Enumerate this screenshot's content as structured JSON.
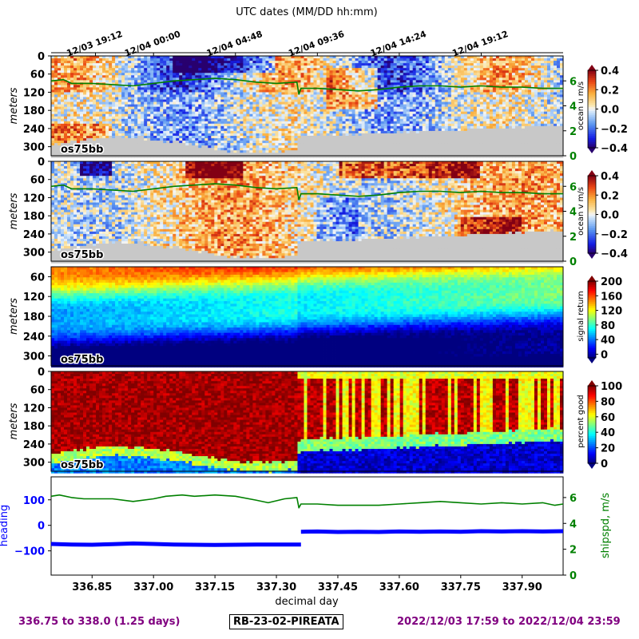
{
  "figure": {
    "top_axis_label": "UTC dates (MM/DD hh:mm)",
    "top_ticks": [
      {
        "x": 336.8583,
        "label": "12/03 19:12"
      },
      {
        "x": 337.0,
        "label": "12/04 00:00"
      },
      {
        "x": 337.2,
        "label": "12/04 04:48"
      },
      {
        "x": 337.4,
        "label": "12/04 09:36"
      },
      {
        "x": 337.6,
        "label": "12/04 14:24"
      },
      {
        "x": 337.8,
        "label": "12/04 19:12"
      }
    ],
    "bottom_xlabel": "decimal day",
    "xlim": [
      336.75,
      338.0
    ],
    "footer_left": "336.75 to 338.0 (1.25 days)",
    "footer_center": "RB-23-02-PIREATA",
    "footer_right": "2022/12/03 17:59 to 2022/12/04 23:59",
    "colors": {
      "shipspd": "#008000",
      "heading": "#0000ff",
      "nodata": "#c8c8c8",
      "footer": "#800080"
    }
  },
  "chart_data": [
    {
      "type": "heatmap",
      "id": "ocean_u",
      "ylabel": "meters",
      "ylim": [
        330,
        0
      ],
      "yticks": [
        0,
        60,
        120,
        180,
        240,
        300
      ],
      "instrument_label": "os75bb",
      "colorbar_label": "ocean u m/s",
      "colorbar_ticks": [
        "0.4",
        "0.2",
        "0.0",
        "−0.2",
        "−0.4"
      ],
      "colormap": "blue-white-red",
      "vlim": [
        -0.4,
        0.4
      ],
      "right_axis_ticks": [
        "6",
        "4",
        "2",
        "0"
      ],
      "right_axis_ylim": [
        0,
        8
      ]
    },
    {
      "type": "heatmap",
      "id": "ocean_v",
      "ylabel": "meters",
      "ylim": [
        330,
        0
      ],
      "yticks": [
        0,
        60,
        120,
        180,
        240,
        300
      ],
      "instrument_label": "os75bb",
      "colorbar_label": "ocean v m/s",
      "colorbar_ticks": [
        "0.4",
        "0.2",
        "0.0",
        "−0.2",
        "−0.4"
      ],
      "colormap": "blue-white-red",
      "vlim": [
        -0.4,
        0.4
      ],
      "right_axis_ticks": [
        "6",
        "4",
        "2",
        "0"
      ],
      "right_axis_ylim": [
        0,
        8
      ]
    },
    {
      "type": "heatmap",
      "id": "signal_return",
      "ylabel": "meters",
      "ylim": [
        330,
        30
      ],
      "yticks": [
        60,
        120,
        180,
        240,
        300
      ],
      "instrument_label": "os75bb",
      "colorbar_label": "signal return",
      "colorbar_ticks": [
        "200",
        "160",
        "120",
        "80",
        "40",
        "0"
      ],
      "colormap": "jet",
      "vlim": [
        0,
        210
      ]
    },
    {
      "type": "heatmap",
      "id": "percent_good",
      "ylabel": "meters",
      "ylim": [
        330,
        0
      ],
      "yticks": [
        0,
        60,
        120,
        180,
        240,
        300
      ],
      "instrument_label": "os75bb",
      "colorbar_label": "percent good",
      "colorbar_ticks": [
        "100",
        "80",
        "60",
        "40",
        "20",
        "0"
      ],
      "colormap": "jet",
      "vlim": [
        0,
        100
      ]
    },
    {
      "type": "line",
      "id": "heading_shipspd",
      "xticks": [
        "336.85",
        "337.00",
        "337.15",
        "337.30",
        "337.45",
        "337.60",
        "337.75",
        "337.90"
      ],
      "xtick_values": [
        336.85,
        337.0,
        337.15,
        337.3,
        337.45,
        337.6,
        337.75,
        337.9
      ],
      "left_ylabel": "heading",
      "left_yticks": [
        "100",
        "0",
        "−100"
      ],
      "left_ytick_values": [
        100,
        0,
        -100
      ],
      "left_ylim": [
        -195,
        190
      ],
      "right_ylabel": "shipspd, m/s",
      "right_yticks": [
        "6",
        "4",
        "2",
        "0"
      ],
      "right_ytick_values": [
        6,
        4,
        2,
        0
      ],
      "right_ylim": [
        0,
        7.6
      ],
      "series": [
        {
          "name": "heading",
          "axis": "left",
          "x": [
            336.75,
            336.8,
            336.85,
            336.9,
            336.95,
            337.0,
            337.05,
            337.1,
            337.15,
            337.2,
            337.25,
            337.3,
            337.35,
            337.36
          ],
          "y": [
            -73,
            -75,
            -76,
            -74,
            -71,
            -73,
            -75,
            -76,
            -77,
            -76,
            -75,
            -75,
            -75,
            -75
          ]
        },
        {
          "name": "heading",
          "axis": "left",
          "x": [
            337.36,
            337.4,
            337.45,
            337.5,
            337.55,
            337.6,
            337.65,
            337.7,
            337.75,
            337.8,
            337.85,
            337.9,
            337.95,
            338.0
          ],
          "y": [
            -25,
            -24,
            -26,
            -25,
            -26,
            -24,
            -25,
            -24,
            -25,
            -23,
            -24,
            -23,
            -24,
            -23
          ]
        },
        {
          "name": "shipspd",
          "axis": "right",
          "x": [
            336.75,
            336.77,
            336.8,
            336.83,
            336.87,
            336.9,
            336.95,
            337.0,
            337.03,
            337.07,
            337.1,
            337.15,
            337.2,
            337.25,
            337.28,
            337.32,
            337.35,
            337.355,
            337.36,
            337.4,
            337.45,
            337.5,
            337.55,
            337.6,
            337.65,
            337.7,
            337.75,
            337.8,
            337.85,
            337.9,
            337.95,
            337.98,
            338.0
          ],
          "y": [
            6.1,
            6.2,
            6.0,
            5.9,
            5.9,
            5.9,
            5.7,
            5.9,
            6.1,
            6.2,
            6.1,
            6.2,
            6.1,
            5.8,
            5.6,
            5.9,
            6.0,
            5.2,
            5.5,
            5.5,
            5.4,
            5.4,
            5.4,
            5.5,
            5.6,
            5.7,
            5.6,
            5.5,
            5.6,
            5.5,
            5.6,
            5.4,
            5.5
          ]
        }
      ]
    }
  ],
  "overlay_shipspd": {
    "x": [
      336.75,
      336.78,
      336.8,
      336.85,
      336.9,
      336.95,
      337.0,
      337.05,
      337.1,
      337.15,
      337.2,
      337.25,
      337.3,
      337.35,
      337.355,
      337.36,
      337.4,
      337.45,
      337.5,
      337.55,
      337.6,
      337.65,
      337.7,
      337.75,
      337.8,
      337.85,
      337.9,
      337.95,
      338.0
    ],
    "y": [
      6.0,
      6.1,
      5.8,
      5.8,
      5.7,
      5.6,
      5.8,
      6.0,
      6.1,
      6.2,
      6.1,
      5.9,
      5.8,
      5.9,
      4.9,
      5.4,
      5.4,
      5.3,
      5.2,
      5.3,
      5.5,
      5.6,
      5.6,
      5.5,
      5.6,
      5.5,
      5.5,
      5.4,
      5.4
    ]
  }
}
